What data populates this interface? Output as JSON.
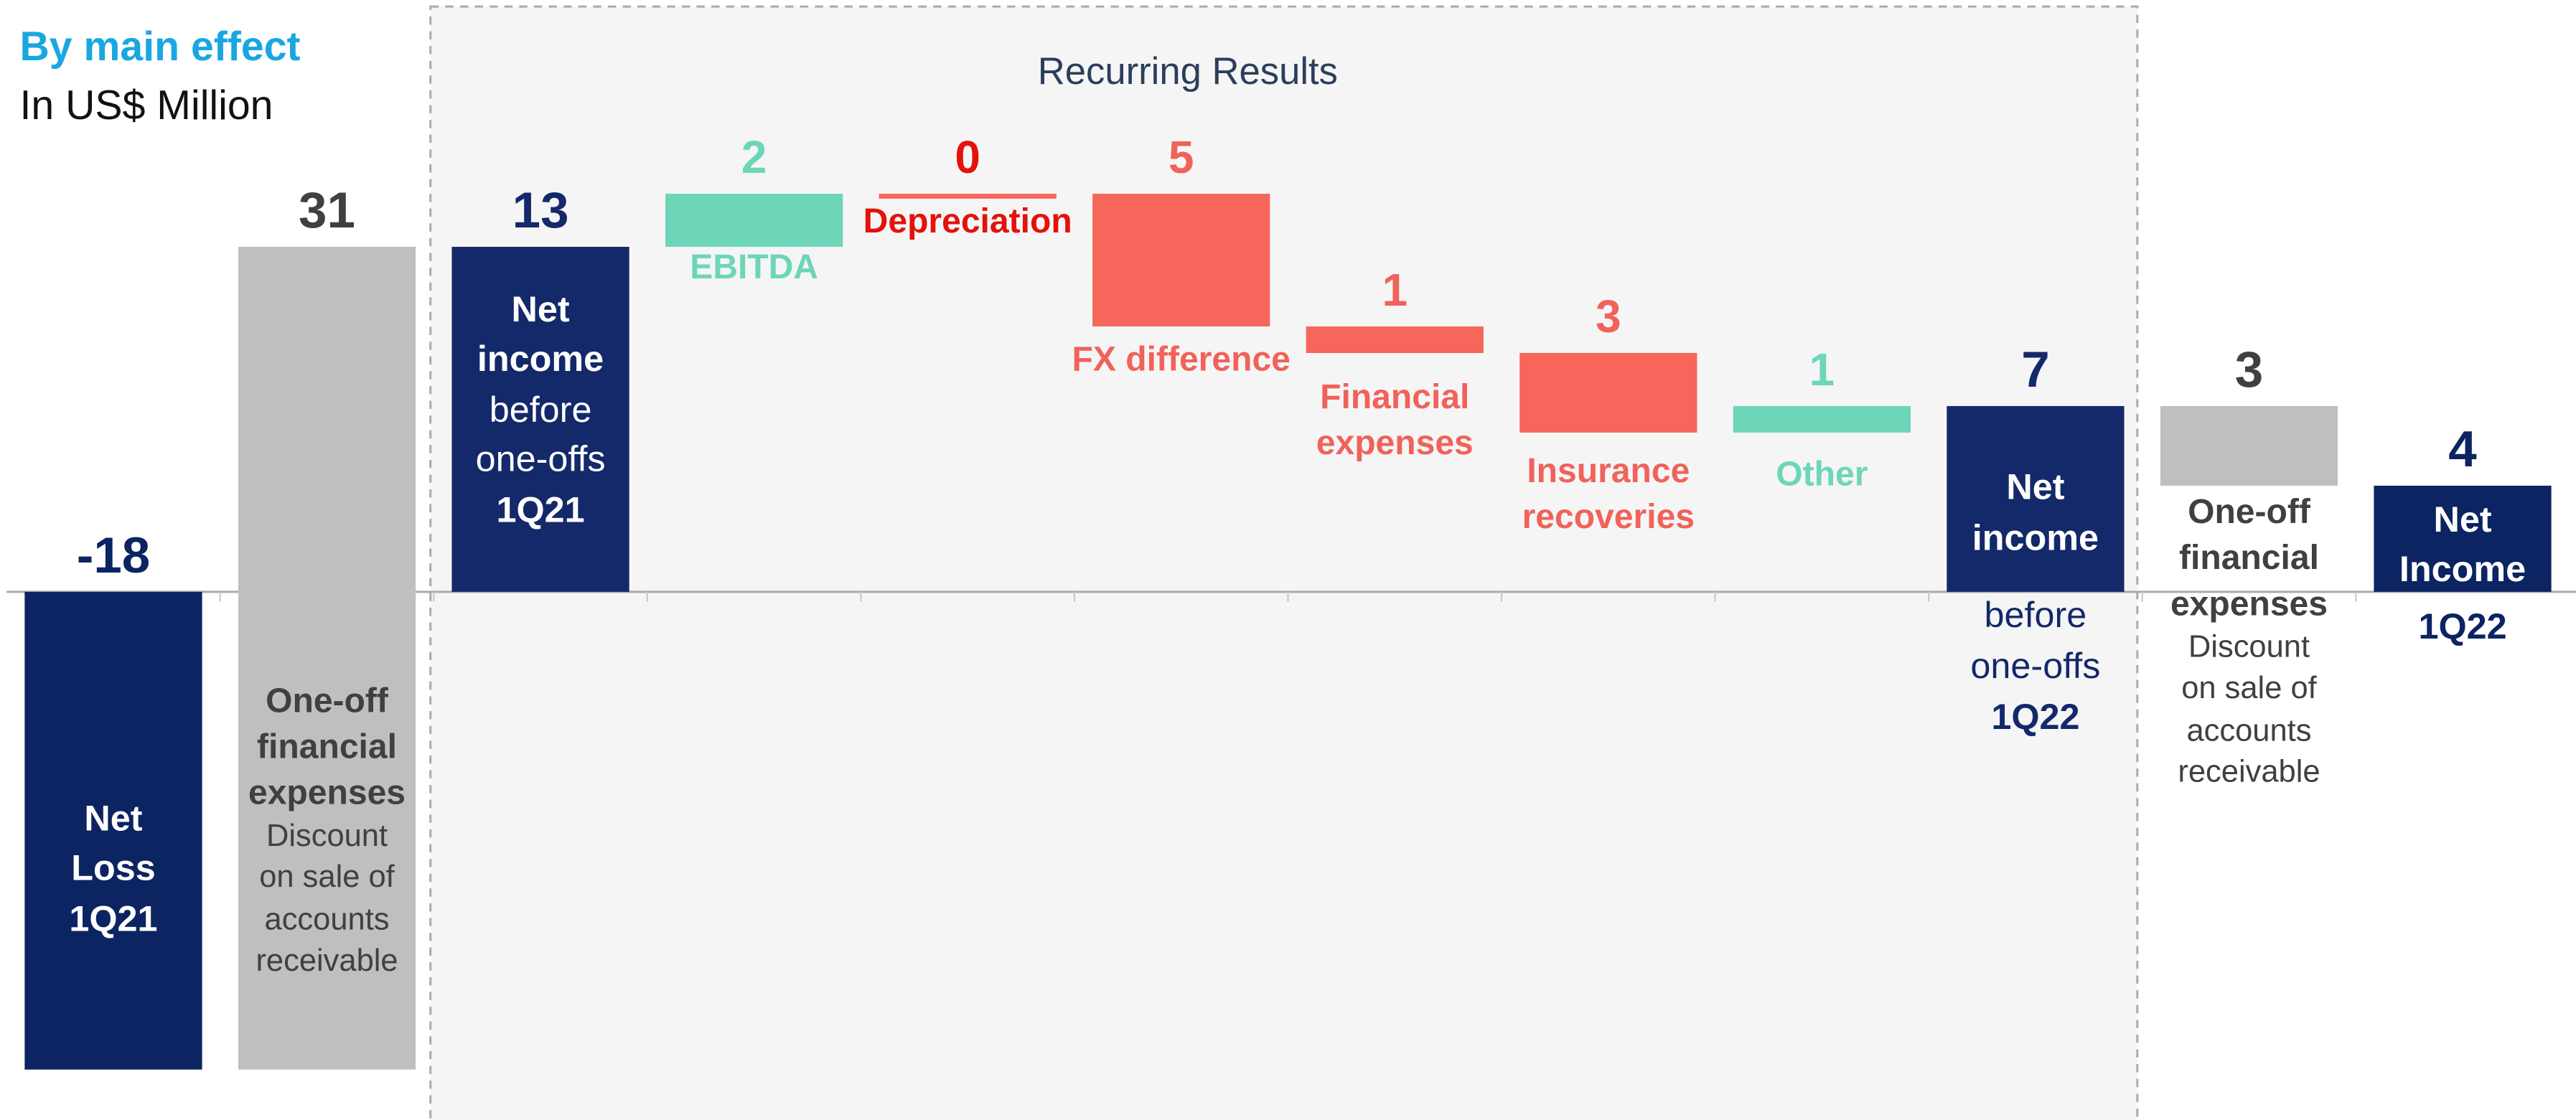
{
  "header": {
    "title": "By main effect",
    "subtitle": "In US$ Million"
  },
  "chart_data": {
    "type": "waterfall",
    "title": "Recurring Results",
    "categories": [
      [
        {
          "text": "Net",
          "bold": true
        },
        {
          "text": "Loss",
          "bold": true
        },
        {
          "text": "1Q21",
          "bold": true
        }
      ],
      [
        {
          "text": "One-off",
          "bold": true
        },
        {
          "text": "financial",
          "bold": true
        },
        {
          "text": "expenses",
          "bold": true
        },
        {
          "text": "Discount",
          "bold": false
        },
        {
          "text": "on sale of",
          "bold": false
        },
        {
          "text": "accounts",
          "bold": false
        },
        {
          "text": "receivable",
          "bold": false
        }
      ],
      [
        {
          "text": "Net",
          "bold": true
        },
        {
          "text": "income",
          "bold": true
        },
        {
          "text": "before",
          "bold": false
        },
        {
          "text": "one-offs",
          "bold": false
        },
        {
          "text": "1Q21",
          "bold": true
        }
      ],
      [
        {
          "text": "EBITDA",
          "bold": true
        }
      ],
      [
        {
          "text": "Depreciation",
          "bold": true
        }
      ],
      [
        {
          "text": "FX difference",
          "bold": true
        }
      ],
      [
        {
          "text": "Financial",
          "bold": true
        },
        {
          "text": "expenses",
          "bold": true
        }
      ],
      [
        {
          "text": "Insurance",
          "bold": true
        },
        {
          "text": "recoveries",
          "bold": true
        }
      ],
      [
        {
          "text": "Other",
          "bold": true
        }
      ],
      [
        {
          "text": "Net",
          "bold": true
        },
        {
          "text": "income",
          "bold": true
        },
        {
          "text": "before",
          "bold": false
        },
        {
          "text": "one-offs",
          "bold": false
        },
        {
          "text": "1Q22",
          "bold": true
        }
      ],
      [
        {
          "text": "One-off",
          "bold": true
        },
        {
          "text": "financial",
          "bold": true
        },
        {
          "text": "expenses",
          "bold": true
        },
        {
          "text": "Discount",
          "bold": false
        },
        {
          "text": "on sale of",
          "bold": false
        },
        {
          "text": "accounts",
          "bold": false
        },
        {
          "text": "receivable",
          "bold": false
        }
      ],
      [
        {
          "text": "Net",
          "bold": true
        },
        {
          "text": "Income",
          "bold": true
        },
        {
          "text": "1Q22",
          "bold": true
        }
      ]
    ],
    "values": [
      -18,
      31,
      13,
      2,
      0,
      -5,
      -1,
      -3,
      1,
      7,
      -3,
      4
    ],
    "value_labels": [
      "-18",
      "31",
      "13",
      "2",
      "0",
      "5",
      "1",
      "3",
      "1",
      "7",
      "3",
      "4"
    ],
    "measure": [
      "absolute",
      "relative",
      "absolute",
      "relative",
      "relative",
      "relative",
      "relative",
      "relative",
      "relative",
      "absolute",
      "relative",
      "absolute"
    ],
    "colors": [
      "#0c2461",
      "#bfbfbf",
      "#14296a",
      "#6dd6b8",
      "#f6665b",
      "#f6665b",
      "#f6665b",
      "#f6665b",
      "#6dd6b8",
      "#14296a",
      "#bfbfbf",
      "#0c2461"
    ],
    "label_colors": [
      "#0c2461",
      "#404040",
      "#14296a",
      "#6dd6b8",
      "#e3120b",
      "#f0625a",
      "#f0625a",
      "#f0625a",
      "#6dd6b8",
      "#14296a",
      "#404040",
      "#0c2461"
    ],
    "ylim": [
      -19.9,
      22.3
    ]
  }
}
